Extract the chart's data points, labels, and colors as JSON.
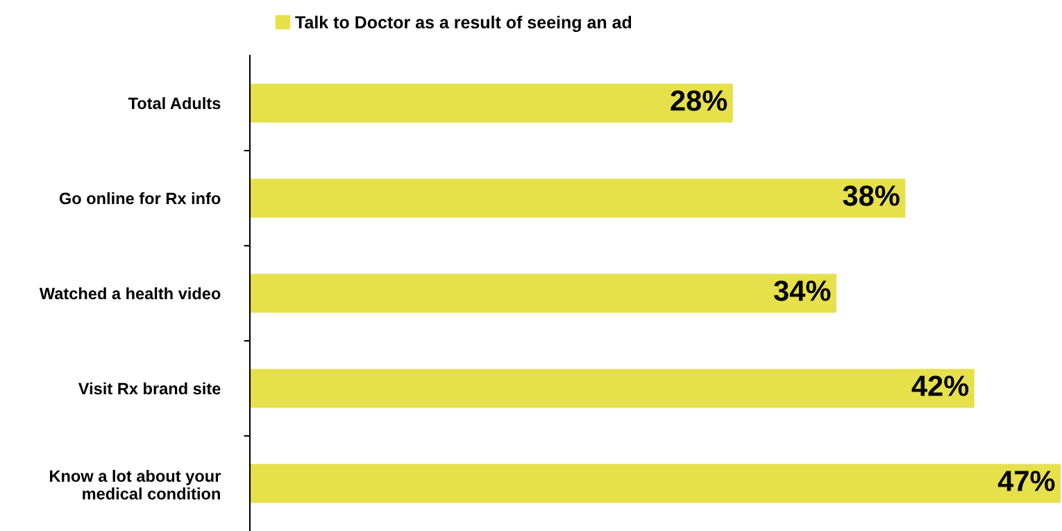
{
  "chart_data": {
    "type": "bar",
    "orientation": "horizontal",
    "categories": [
      "Total Adults",
      "Go online for Rx info",
      "Watched a health video",
      "Visit Rx brand site",
      "Know a lot about your\nmedical condition"
    ],
    "series": [
      {
        "name": "Talk to Doctor as a result of seeing an ad",
        "color": "#e6e04a",
        "values": [
          28,
          38,
          34,
          42,
          47
        ],
        "value_labels": [
          "28%",
          "38%",
          "34%",
          "42%",
          "47%"
        ]
      }
    ],
    "legend": "top",
    "tick_labels": "y",
    "grid": false
  }
}
